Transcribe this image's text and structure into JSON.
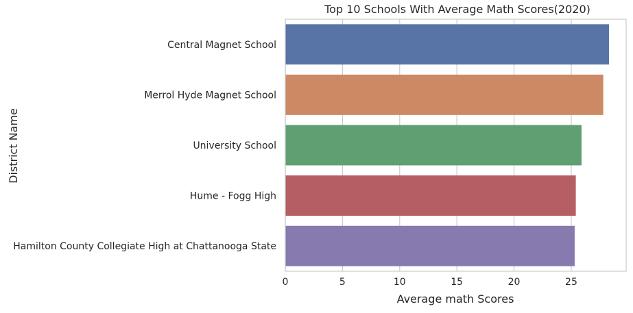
{
  "chart_data": {
    "type": "bar",
    "orientation": "horizontal",
    "title": "Top 10 Schools With Average Math Scores(2020)",
    "xlabel": "Average math Scores",
    "ylabel": "District Name",
    "xlim": [
      0,
      29.8
    ],
    "xticks": [
      0,
      5,
      10,
      15,
      20,
      25
    ],
    "grid": true,
    "categories": [
      "Central Magnet School",
      "Merrol Hyde Magnet School",
      "University School",
      "Hume - Fogg High",
      "Hamilton County Collegiate High at Chattanooga State"
    ],
    "values": [
      28.3,
      27.8,
      25.9,
      25.4,
      25.3
    ],
    "colors": [
      "#5874a6",
      "#cd8963",
      "#5f9f72",
      "#b55e63",
      "#877aae"
    ]
  }
}
